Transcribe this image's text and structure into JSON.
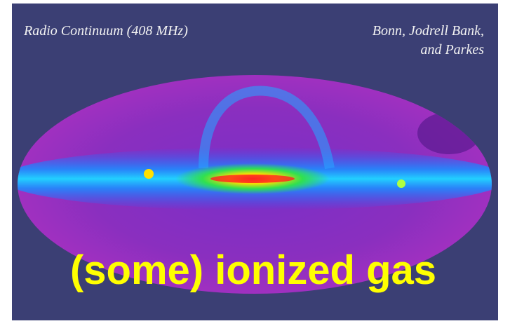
{
  "image": {
    "caption_left": "Radio Continuum (408 MHz)",
    "caption_right": [
      "Bonn, Jodrell Bank,",
      "and Parkes"
    ],
    "overlay_text": "(some) ionized gas"
  }
}
